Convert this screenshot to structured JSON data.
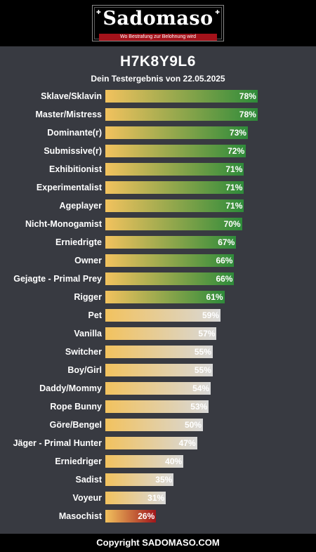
{
  "header": {
    "logo_text": "Sadomaso",
    "logo_tagline": "Wo Bestrafung zur Belohnung wird"
  },
  "title": "H7K8Y9L6",
  "subtitle": "Dein Testergebnis von 22.05.2025",
  "colors": {
    "bar_start": "#f2c25e",
    "green_end": "#2e8b3a",
    "light_end": "#d8d8d8",
    "red_end": "#a0161b",
    "background": "#383a41"
  },
  "chart_data": {
    "type": "bar",
    "orientation": "horizontal",
    "xlim": [
      0,
      100
    ],
    "unit": "%",
    "categories": [
      "Sklave/Sklavin",
      "Master/Mistress",
      "Dominante(r)",
      "Submissive(r)",
      "Exhibitionist",
      "Experimentalist",
      "Ageplayer",
      "Nicht-Monogamist",
      "Erniedrigte",
      "Owner",
      "Gejagte - Primal Prey",
      "Rigger",
      "Pet",
      "Vanilla",
      "Switcher",
      "Boy/Girl",
      "Daddy/Mommy",
      "Rope Bunny",
      "Göre/Bengel",
      "Jäger - Primal Hunter",
      "Erniedriger",
      "Sadist",
      "Voyeur",
      "Masochist"
    ],
    "values": [
      78,
      78,
      73,
      72,
      71,
      71,
      71,
      70,
      67,
      66,
      66,
      61,
      59,
      57,
      55,
      55,
      54,
      53,
      50,
      47,
      40,
      35,
      31,
      26
    ],
    "labels": [
      "78%",
      "78%",
      "73%",
      "72%",
      "71%",
      "71%",
      "71%",
      "70%",
      "67%",
      "66%",
      "66%",
      "61%",
      "59%",
      "57%",
      "55%",
      "55%",
      "54%",
      "53%",
      "50%",
      "47%",
      "40%",
      "35%",
      "31%",
      "26%"
    ],
    "bar_color_group": [
      "green",
      "green",
      "green",
      "green",
      "green",
      "green",
      "green",
      "green",
      "green",
      "green",
      "green",
      "green",
      "light",
      "light",
      "light",
      "light",
      "light",
      "light",
      "light",
      "light",
      "light",
      "light",
      "light",
      "red"
    ]
  },
  "footer": "Copyright SADOMASO.COM"
}
